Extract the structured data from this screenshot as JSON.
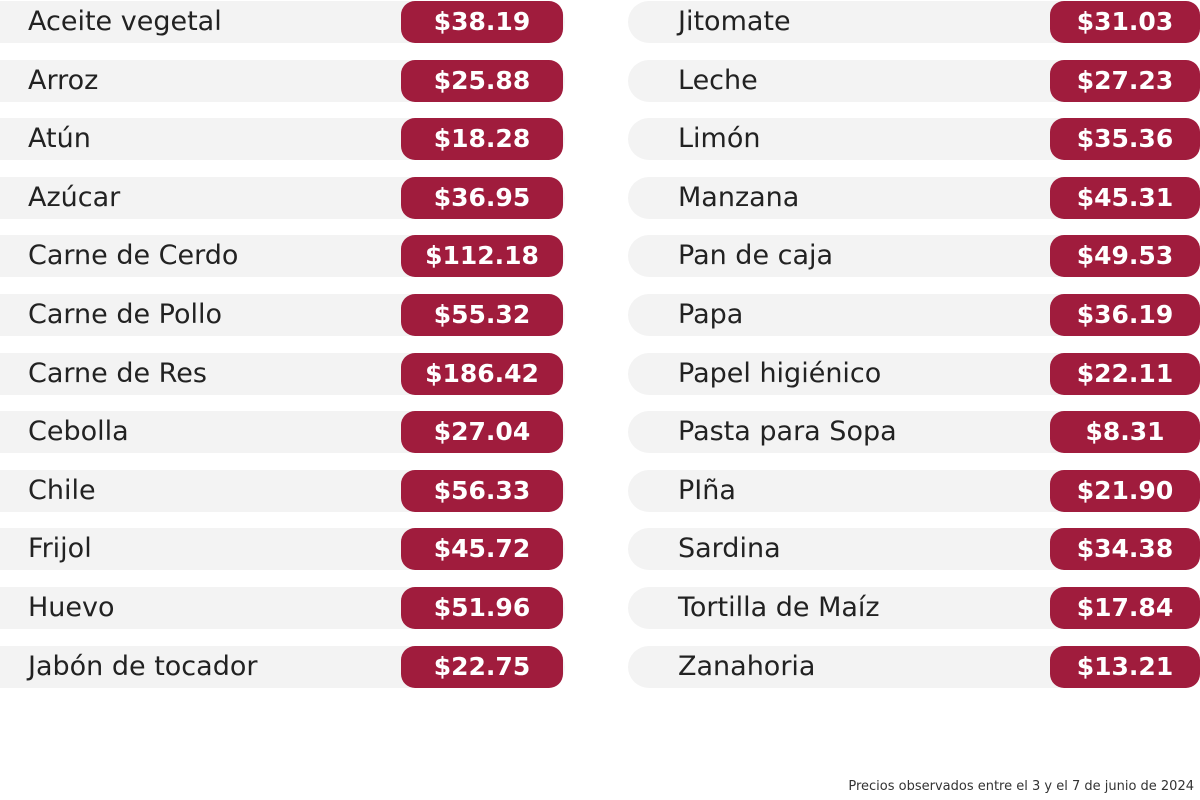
{
  "left": [
    {
      "name": "Aceite vegetal",
      "price": "$38.19"
    },
    {
      "name": "Arroz",
      "price": "$25.88"
    },
    {
      "name": "Atún",
      "price": "$18.28"
    },
    {
      "name": "Azúcar",
      "price": "$36.95"
    },
    {
      "name": "Carne de Cerdo",
      "price": "$112.18"
    },
    {
      "name": "Carne de Pollo",
      "price": "$55.32"
    },
    {
      "name": "Carne de Res",
      "price": "$186.42"
    },
    {
      "name": "Cebolla",
      "price": "$27.04"
    },
    {
      "name": "Chile",
      "price": "$56.33"
    },
    {
      "name": "Frijol",
      "price": "$45.72"
    },
    {
      "name": "Huevo",
      "price": "$51.96"
    },
    {
      "name": "Jabón de tocador",
      "price": "$22.75"
    }
  ],
  "right": [
    {
      "name": "Jitomate",
      "price": "$31.03"
    },
    {
      "name": "Leche",
      "price": "$27.23"
    },
    {
      "name": "Limón",
      "price": "$35.36"
    },
    {
      "name": "Manzana",
      "price": "$45.31"
    },
    {
      "name": "Pan de caja",
      "price": "$49.53"
    },
    {
      "name": "Papa",
      "price": "$36.19"
    },
    {
      "name": "Papel higiénico",
      "price": "$22.11"
    },
    {
      "name": "Pasta para Sopa",
      "price": "$8.31"
    },
    {
      "name": "PIña",
      "price": "$21.90"
    },
    {
      "name": "Sardina",
      "price": "$34.38"
    },
    {
      "name": "Tortilla de Maíz",
      "price": "$17.84"
    },
    {
      "name": "Zanahoria",
      "price": "$13.21"
    }
  ],
  "footnote": "Precios observados entre el 3 y el 7 de junio de 2024"
}
